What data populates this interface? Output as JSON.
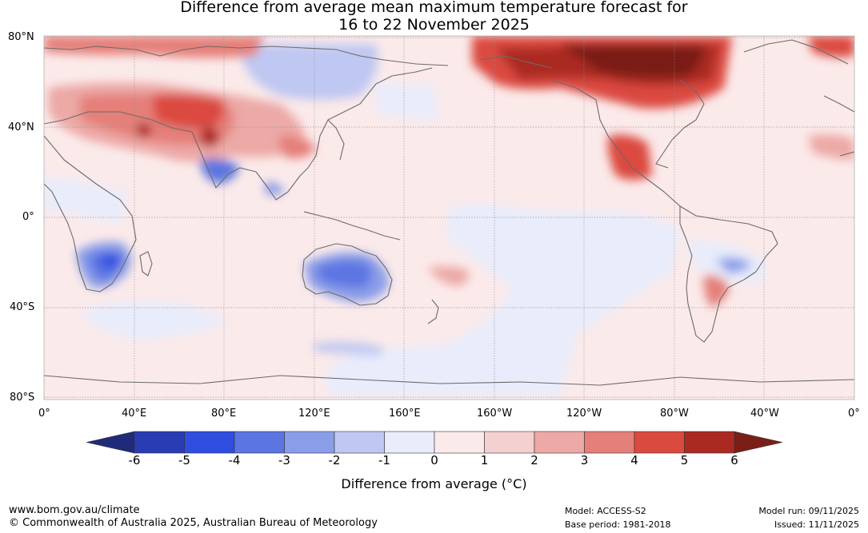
{
  "title": {
    "line1": "Difference from average mean maximum temperature forecast for",
    "line2": "16 to 22 November 2025"
  },
  "axes": {
    "lat_labels": [
      "80°N",
      "40°N",
      "0°",
      "40°S",
      "80°S"
    ],
    "lon_labels": [
      "0°",
      "40°E",
      "80°E",
      "120°E",
      "160°E",
      "160°W",
      "120°W",
      "80°W",
      "40°W",
      "0°"
    ]
  },
  "colorbar": {
    "ticks": [
      "-6",
      "-5",
      "-4",
      "-3",
      "-2",
      "-1",
      "0",
      "1",
      "2",
      "3",
      "4",
      "5",
      "6"
    ],
    "colors": [
      "#1f2a7a",
      "#2a3cb4",
      "#2f4ee0",
      "#5b75e2",
      "#8a9de8",
      "#bfc8f2",
      "#e8ecfb",
      "#fbeaea",
      "#f4d0d0",
      "#eca9a6",
      "#e57f79",
      "#db4a3f",
      "#aa2a22",
      "#7a1e17"
    ],
    "label": "Difference from average (°C)"
  },
  "footer": {
    "website": "www.bom.gov.au/climate",
    "copyright": "© Commonwealth of Australia 2025, Australian Bureau of Meteorology",
    "model": "Model: ACCESS-S2",
    "base_period": "Base period: 1981-2018",
    "model_run": "Model run: 09/11/2025",
    "issued": "Issued: 11/11/2025"
  }
}
